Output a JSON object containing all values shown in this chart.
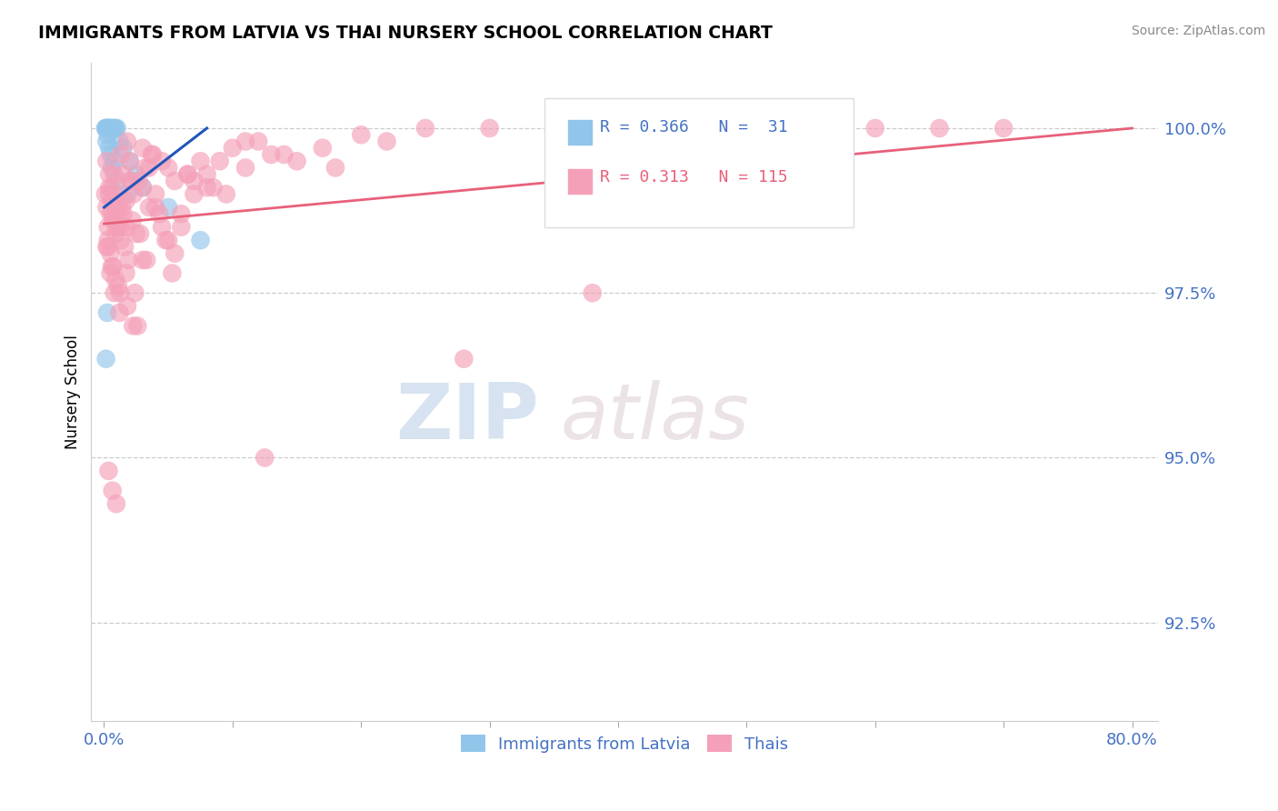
{
  "title": "IMMIGRANTS FROM LATVIA VS THAI NURSERY SCHOOL CORRELATION CHART",
  "source": "Source: ZipAtlas.com",
  "ylabel": "Nursery School",
  "legend_blue_label": "Immigrants from Latvia",
  "legend_pink_label": "Thais",
  "R_blue": 0.366,
  "N_blue": 31,
  "R_pink": 0.313,
  "N_pink": 115,
  "blue_color": "#92C5EA",
  "pink_color": "#F4A0B8",
  "blue_line_color": "#2255BB",
  "pink_line_color": "#E8607A",
  "watermark_zip": "ZIP",
  "watermark_atlas": "atlas",
  "yticks": [
    92.5,
    95.0,
    97.5,
    100.0
  ],
  "ytick_labels": [
    "92.5%",
    "95.0%",
    "97.5%",
    "100.0%"
  ],
  "ylim_min": 91.0,
  "ylim_max": 101.0,
  "xlim_min": -1.0,
  "xlim_max": 82.0,
  "blue_dots_x": [
    0.1,
    0.15,
    0.2,
    0.25,
    0.3,
    0.35,
    0.4,
    0.45,
    0.5,
    0.6,
    0.7,
    0.8,
    0.9,
    1.0,
    1.2,
    1.5,
    2.0,
    2.5,
    3.0,
    5.0,
    0.2,
    0.3,
    0.4,
    0.5,
    0.6,
    0.8,
    1.0,
    0.15,
    0.25,
    1.8,
    7.5
  ],
  "blue_dots_y": [
    100.0,
    100.0,
    100.0,
    100.0,
    100.0,
    100.0,
    100.0,
    100.0,
    100.0,
    100.0,
    100.0,
    100.0,
    100.0,
    100.0,
    99.8,
    99.7,
    99.5,
    99.3,
    99.1,
    98.8,
    99.8,
    99.9,
    99.7,
    99.6,
    99.4,
    99.5,
    99.2,
    96.5,
    97.2,
    99.0,
    98.3
  ],
  "pink_dots_x": [
    0.1,
    0.2,
    0.3,
    0.4,
    0.5,
    0.6,
    0.7,
    0.8,
    0.9,
    1.0,
    1.1,
    1.2,
    1.3,
    1.5,
    1.7,
    2.0,
    2.2,
    2.5,
    3.0,
    3.5,
    4.0,
    4.5,
    5.0,
    5.5,
    6.0,
    7.0,
    8.0,
    9.0,
    10.0,
    11.0,
    12.0,
    13.0,
    15.0,
    17.0,
    20.0,
    22.0,
    25.0,
    30.0,
    35.0,
    40.0,
    45.0,
    50.0,
    55.0,
    60.0,
    65.0,
    70.0,
    0.3,
    0.5,
    0.7,
    0.9,
    1.1,
    1.4,
    1.6,
    1.9,
    2.3,
    2.7,
    3.2,
    3.8,
    4.3,
    4.8,
    5.3,
    6.5,
    7.5,
    8.5,
    0.2,
    0.4,
    0.6,
    0.8,
    1.0,
    1.3,
    1.8,
    2.1,
    2.8,
    3.3,
    0.3,
    0.5,
    0.8,
    1.2,
    1.7,
    2.4,
    3.5,
    5.5,
    0.4,
    0.7,
    1.0,
    1.5,
    2.0,
    3.0,
    4.0,
    6.0,
    0.2,
    0.6,
    1.1,
    1.8,
    2.6,
    3.7,
    5.0,
    7.0,
    9.5,
    12.5,
    0.35,
    0.65,
    0.95,
    1.25,
    1.75,
    2.25,
    3.0,
    4.5,
    6.5,
    8.0,
    11.0,
    14.0,
    18.0,
    28.0,
    38.0
  ],
  "pink_dots_y": [
    99.0,
    98.8,
    98.5,
    99.1,
    98.7,
    98.9,
    98.6,
    99.3,
    98.4,
    99.0,
    98.8,
    98.5,
    98.3,
    98.7,
    98.9,
    99.2,
    98.6,
    98.4,
    99.1,
    98.8,
    99.0,
    98.5,
    98.3,
    98.1,
    98.7,
    99.0,
    99.3,
    99.5,
    99.7,
    99.4,
    99.8,
    99.6,
    99.5,
    99.7,
    99.9,
    99.8,
    100.0,
    100.0,
    100.0,
    99.9,
    99.8,
    100.0,
    100.0,
    100.0,
    100.0,
    100.0,
    98.3,
    98.1,
    97.9,
    97.7,
    98.5,
    98.8,
    98.2,
    98.0,
    99.0,
    99.2,
    99.4,
    99.6,
    98.7,
    98.3,
    97.8,
    99.3,
    99.5,
    99.1,
    99.5,
    99.3,
    99.1,
    98.9,
    98.7,
    99.6,
    99.8,
    99.2,
    98.4,
    98.0,
    98.2,
    97.8,
    97.5,
    97.2,
    97.8,
    97.5,
    99.4,
    99.2,
    99.0,
    98.7,
    98.5,
    99.3,
    99.5,
    99.7,
    98.8,
    98.5,
    98.2,
    97.9,
    97.6,
    97.3,
    97.0,
    99.6,
    99.4,
    99.2,
    99.0,
    95.0,
    94.8,
    94.5,
    94.3,
    97.5,
    98.5,
    97.0,
    98.0,
    99.5,
    99.3,
    99.1,
    99.8,
    99.6,
    99.4,
    96.5,
    97.5
  ]
}
